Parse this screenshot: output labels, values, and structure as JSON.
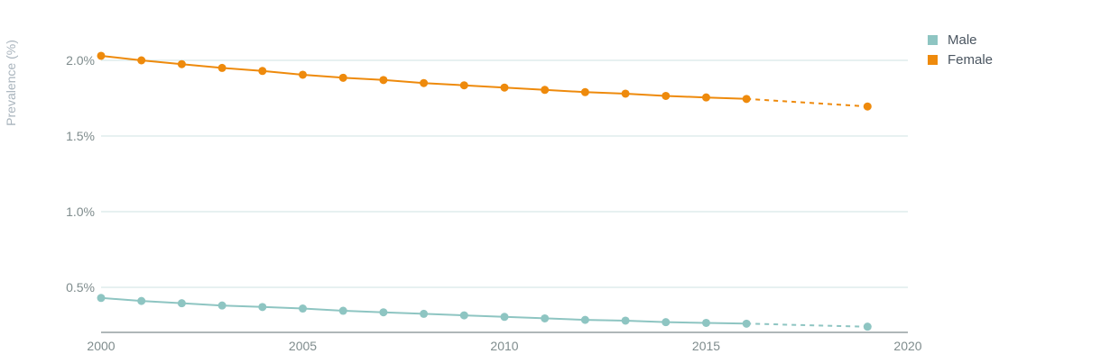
{
  "chart_data": {
    "type": "line",
    "title": "",
    "xlabel": "",
    "ylabel": "Prevalence (%)",
    "xlim": [
      2000,
      2020
    ],
    "ylim": [
      0.2,
      2.2
    ],
    "x_ticks": [
      2000,
      2005,
      2010,
      2015,
      2020
    ],
    "x_tick_labels": [
      "2000",
      "2005",
      "2010",
      "2015",
      "2020"
    ],
    "y_ticks": [
      0.5,
      1.0,
      1.5,
      2.0
    ],
    "y_tick_labels": [
      "0.5%",
      "1.0%",
      "1.5%",
      "2.0%"
    ],
    "grid": true,
    "legend_position": "top-right",
    "series": [
      {
        "name": "Male",
        "color": "#8ec5c2",
        "x": [
          2000,
          2001,
          2002,
          2003,
          2004,
          2005,
          2006,
          2007,
          2008,
          2009,
          2010,
          2011,
          2012,
          2013,
          2014,
          2015,
          2016,
          2019
        ],
        "values": [
          0.43,
          0.41,
          0.395,
          0.38,
          0.37,
          0.36,
          0.345,
          0.335,
          0.325,
          0.315,
          0.305,
          0.295,
          0.285,
          0.28,
          0.27,
          0.265,
          0.26,
          0.24
        ],
        "projected_from": 2016
      },
      {
        "name": "Female",
        "color": "#ee8a0c",
        "x": [
          2000,
          2001,
          2002,
          2003,
          2004,
          2005,
          2006,
          2007,
          2008,
          2009,
          2010,
          2011,
          2012,
          2013,
          2014,
          2015,
          2016,
          2019
        ],
        "values": [
          2.03,
          2.0,
          1.975,
          1.95,
          1.93,
          1.905,
          1.885,
          1.87,
          1.85,
          1.835,
          1.82,
          1.805,
          1.79,
          1.78,
          1.765,
          1.755,
          1.745,
          1.695
        ],
        "projected_from": 2016
      }
    ]
  },
  "colors": {
    "grid": "#cfe3e3",
    "axis": "#7f8c8d",
    "tick_text": "#7f8c8d",
    "ylabel_text": "#a9b4bd"
  }
}
